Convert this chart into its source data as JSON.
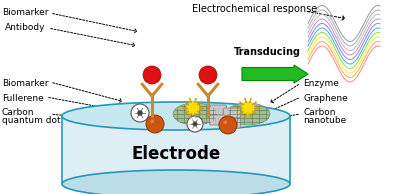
{
  "bg_color": "#ffffff",
  "electrode_label": "Electrode",
  "transducing_label": "Transducing",
  "echem_response_label": "Electrochemical response",
  "antibody_color": "#cc8833",
  "biomarker_color": "#dd1111",
  "electrode_border_color": "#2299bb",
  "electrode_fill_color": "#ddeef5",
  "electrode_bottom_color": "#bbdde8",
  "graphene_color": "#99bb88",
  "enzyme_color": "#ffdd00",
  "fullerene_color": "#888888",
  "nanotube_color": "#b0b0b0",
  "cqdot_color": "#cc5511",
  "transducing_arrow_color": "#22bb22",
  "figsize": [
    4.0,
    1.94
  ],
  "dpi": 100
}
